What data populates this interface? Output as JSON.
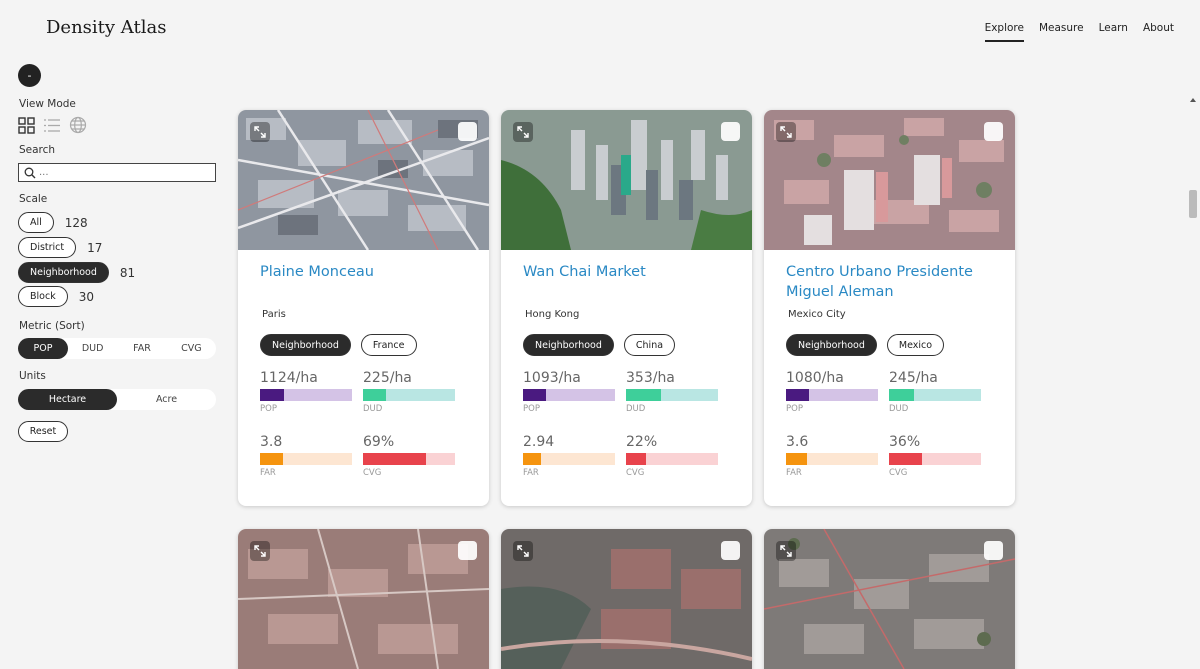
{
  "app": {
    "title": "Density Atlas"
  },
  "nav": [
    {
      "label": "Explore",
      "active": true
    },
    {
      "label": "Measure",
      "active": false
    },
    {
      "label": "Learn",
      "active": false
    },
    {
      "label": "About",
      "active": false
    }
  ],
  "sidebar": {
    "collapse_label": "-",
    "view_mode_label": "View Mode",
    "view_modes": [
      "grid-icon",
      "list-icon",
      "globe-icon"
    ],
    "search_label": "Search",
    "search_placeholder": "...",
    "scale_label": "Scale",
    "scales": [
      {
        "label": "All",
        "count": "128",
        "selected": false
      },
      {
        "label": "District",
        "count": "17",
        "selected": false
      },
      {
        "label": "Neighborhood",
        "count": "81",
        "selected": true
      },
      {
        "label": "Block",
        "count": "30",
        "selected": false
      }
    ],
    "metric_label": "Metric (Sort)",
    "metrics": [
      "POP",
      "DUD",
      "FAR",
      "CVG"
    ],
    "metric_selected": "POP",
    "units_label": "Units",
    "units": [
      "Hectare",
      "Acre"
    ],
    "unit_selected": "Hectare",
    "reset_label": "Reset"
  },
  "colors": {
    "title": "#2a89c4",
    "pop": "#4a1a80",
    "pop_bg": "#d4c3e6",
    "dud": "#3ecf9a",
    "dud_bg": "#b9e6e3",
    "far": "#f5940f",
    "far_bg": "#fde6d2",
    "cvg": "#e8434c",
    "cvg_bg": "#fad2d4"
  },
  "cards": [
    {
      "title": "Plaine Monceau",
      "city": "Paris",
      "scale": "Neighborhood",
      "country": "France",
      "pop": "1124/ha",
      "pop_fill": 0.26,
      "dud": "225/ha",
      "dud_fill": 0.25,
      "far": "3.8",
      "far_fill": 0.25,
      "cvg": "69%",
      "cvg_fill": 0.69
    },
    {
      "title": "Wan Chai Market",
      "city": "Hong Kong",
      "scale": "Neighborhood",
      "country": "China",
      "pop": "1093/ha",
      "pop_fill": 0.25,
      "dud": "353/ha",
      "dud_fill": 0.38,
      "far": "2.94",
      "far_fill": 0.2,
      "cvg": "22%",
      "cvg_fill": 0.22
    },
    {
      "title": "Centro Urbano Presidente Miguel Aleman",
      "city": "Mexico City",
      "scale": "Neighborhood",
      "country": "Mexico",
      "pop": "1080/ha",
      "pop_fill": 0.25,
      "dud": "245/ha",
      "dud_fill": 0.27,
      "far": "3.6",
      "far_fill": 0.23,
      "cvg": "36%",
      "cvg_fill": 0.36
    }
  ],
  "metric_labels": {
    "pop": "POP",
    "dud": "DUD",
    "far": "FAR",
    "cvg": "CVG"
  }
}
